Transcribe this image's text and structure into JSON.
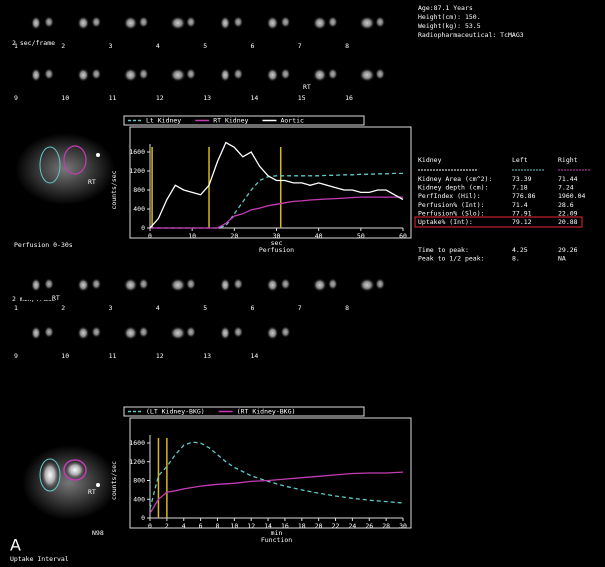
{
  "info": [
    "Age:87.1 Years",
    "Height(cm): 150.",
    "Weight(kg): 53.5",
    "Radiopharmaceutical: TcMAG3"
  ],
  "perfusion_frames": {
    "label": "2 sec/frame",
    "frames": [
      1,
      2,
      3,
      4,
      5,
      6,
      7,
      8,
      9,
      10,
      11,
      12,
      13,
      14,
      15,
      16
    ],
    "roi_label": "RT"
  },
  "function_frames": {
    "label": "2 min/frame",
    "frames": [
      1,
      2,
      3,
      4,
      5,
      6,
      7,
      8,
      9,
      10,
      11,
      12,
      13,
      14
    ],
    "roi_label": "RT"
  },
  "perfusion_roi": {
    "label": "RT",
    "caption": "Perfusion 0-30s"
  },
  "function_roi": {
    "label": "RT",
    "id": "N98",
    "panel": "A",
    "caption": "Uptake Interval"
  },
  "table": {
    "header": [
      "Kidney",
      "Left",
      "Right"
    ],
    "rows": [
      [
        "Kidney Area (cm^2):",
        "73.39",
        "71.44"
      ],
      [
        "Kidney depth (cm):",
        "7.18",
        "7.24"
      ],
      [
        "PerfIndex (Hil):",
        "776.86",
        "1960.04"
      ],
      [
        "Perfusion% (Int):",
        "71.4",
        "28.6"
      ],
      [
        "Perfusion% (Slo):",
        "77.91",
        "22.09"
      ],
      [
        "Uptake% (Int):",
        "79.12",
        "20.88"
      ]
    ],
    "highlight": 5,
    "extra_rows": [
      [
        "Time to peak:",
        "4.25",
        "29.26"
      ],
      [
        "Peak to 1/2 peak:",
        "8.",
        "NA"
      ]
    ]
  },
  "chart_data": [
    {
      "type": "line",
      "ylabel": "counts/sec",
      "xlabel": "sec",
      "subtitle": "Perfusion",
      "x": [
        0,
        2,
        4,
        6,
        8,
        10,
        12,
        14,
        16,
        18,
        20,
        22,
        24,
        26,
        28,
        30,
        32,
        34,
        36,
        38,
        40,
        42,
        44,
        46,
        48,
        50,
        52,
        54,
        56,
        58,
        60
      ],
      "series": [
        {
          "name": "Lt Kidney",
          "color": "#5fc9c9",
          "dash": true,
          "values": [
            0,
            0,
            0,
            0,
            0,
            0,
            0,
            0,
            0,
            50,
            300,
            550,
            800,
            1000,
            1080,
            1100,
            1100,
            1100,
            1100,
            1100,
            1100,
            1110,
            1110,
            1120,
            1120,
            1130,
            1130,
            1140,
            1140,
            1150,
            1150
          ]
        },
        {
          "name": "RT Kidney",
          "color": "#c43cb4",
          "dash": false,
          "values": [
            0,
            0,
            0,
            0,
            0,
            0,
            0,
            0,
            0,
            100,
            250,
            300,
            380,
            420,
            470,
            500,
            530,
            560,
            570,
            590,
            600,
            610,
            620,
            630,
            640,
            650,
            650,
            650,
            650,
            650,
            650
          ]
        },
        {
          "name": "Aortic",
          "color": "#ffffff",
          "dash": false,
          "values": [
            0,
            200,
            600,
            900,
            800,
            750,
            700,
            900,
            1400,
            1800,
            1700,
            1500,
            1600,
            1300,
            1100,
            1000,
            1000,
            950,
            950,
            900,
            950,
            900,
            850,
            800,
            800,
            750,
            750,
            800,
            800,
            700,
            600
          ]
        }
      ],
      "xlim": [
        0,
        60
      ],
      "ylim": [
        0,
        1600
      ],
      "xticks": [
        0,
        10,
        20,
        30,
        40,
        50,
        60
      ],
      "yticks": [
        0,
        400,
        800,
        1200,
        1600
      ],
      "markers": [
        0.5,
        14,
        31
      ],
      "marker_color": "#d8b820"
    },
    {
      "type": "line",
      "ylabel": "counts/sec",
      "xlabel": "min",
      "subtitle": "Function",
      "x": [
        0,
        1,
        2,
        3,
        4,
        5,
        6,
        7,
        8,
        9,
        10,
        12,
        14,
        16,
        18,
        20,
        22,
        24,
        26,
        28,
        30
      ],
      "series": [
        {
          "name": "(LT Kidney-BKG)",
          "color": "#5fc9c9",
          "dash": true,
          "values": [
            200,
            900,
            1100,
            1350,
            1550,
            1620,
            1600,
            1500,
            1350,
            1200,
            1080,
            900,
            780,
            680,
            600,
            530,
            470,
            420,
            380,
            350,
            320
          ]
        },
        {
          "name": "(RT Kidney-BKG)",
          "color": "#c43cb4",
          "dash": false,
          "values": [
            100,
            400,
            550,
            580,
            620,
            650,
            680,
            700,
            720,
            730,
            740,
            780,
            800,
            830,
            860,
            890,
            920,
            950,
            960,
            960,
            980
          ]
        }
      ],
      "xlim": [
        0,
        30
      ],
      "ylim": [
        0,
        1600
      ],
      "xticks": [
        0,
        2,
        4,
        6,
        8,
        10,
        12,
        14,
        16,
        18,
        20,
        22,
        24,
        26,
        28,
        30
      ],
      "yticks": [
        0,
        400,
        800,
        1200,
        1600
      ],
      "markers": [
        1,
        2
      ],
      "marker_color": "#d8b820"
    }
  ]
}
